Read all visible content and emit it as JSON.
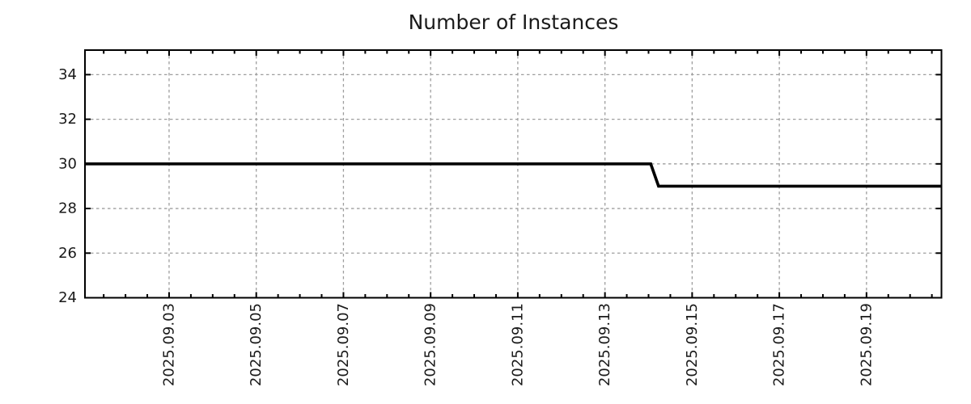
{
  "chart_data": {
    "type": "line",
    "title": "Number of Instances",
    "xlabel": "",
    "ylabel": "",
    "x_axis": {
      "unit": "date-september-2025",
      "tick_labels": [
        "2025.09.03",
        "2025.09.05",
        "2025.09.07",
        "2025.09.09",
        "2025.09.11",
        "2025.09.13",
        "2025.09.15",
        "2025.09.17",
        "2025.09.19"
      ],
      "tick_positions_day": [
        3,
        5,
        7,
        9,
        11,
        13,
        15,
        17,
        19
      ],
      "minor_tick_step_days": 0.5,
      "range_days": [
        1.07,
        20.72
      ],
      "labels_rotated_degrees": -90
    },
    "y_axis": {
      "tick_labels": [
        "24",
        "26",
        "28",
        "30",
        "32",
        "34"
      ],
      "ticks": [
        24,
        26,
        28,
        30,
        32,
        34
      ],
      "range": [
        24,
        35.1
      ]
    },
    "grid": {
      "show": true,
      "style": "dashed",
      "color": "#9e9e9e"
    },
    "legend": {
      "show": false
    },
    "series": [
      {
        "name": "instances",
        "color": "#000000",
        "points": [
          {
            "day": 1.07,
            "value": 30
          },
          {
            "day": 14.05,
            "value": 30
          },
          {
            "day": 14.23,
            "value": 29
          },
          {
            "day": 20.72,
            "value": 29
          }
        ]
      }
    ]
  },
  "colors": {
    "background": "#ffffff",
    "plot_border": "#000000",
    "grid": "#9e9e9e",
    "text": "#1a1a1a",
    "series_line": "#000000"
  }
}
